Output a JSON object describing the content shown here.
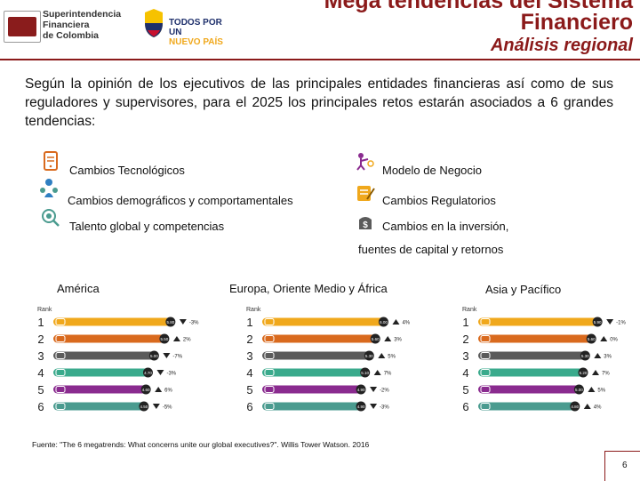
{
  "header": {
    "org_name_lines": [
      "Superintendencia",
      "Financiera",
      "de Colombia"
    ],
    "gov_logo_lines": [
      "TODOS POR UN",
      "NUEVO PAÍS"
    ],
    "title_line1": "Mega tendencias del Sistema",
    "title_line2": "Financiero",
    "subtitle": "Análisis regional"
  },
  "intro": "Según la opinión de los ejecutivos de las principales entidades financieras así como de sus reguladores y supervisores, para el 2025 los principales retos estarán asociados a 6 grandes tendencias:",
  "trends": [
    {
      "label": "Cambios Tecnológicos",
      "icon": "tablet-icon"
    },
    {
      "label": "Modelo de Negocio",
      "icon": "business-model-icon"
    },
    {
      "label": "Cambios demográficos y comportamentales",
      "icon": "demographics-icon"
    },
    {
      "label": "Cambios Regulatorios",
      "icon": "regulatory-icon"
    },
    {
      "label": "Talento global y competencias",
      "icon": "talent-icon"
    },
    {
      "label": "Cambios en la inversión,",
      "icon": "investment-icon"
    }
  ],
  "trend_continuation": "fuentes de capital y retornos",
  "rank_header": "Rank",
  "ranks": [
    "1",
    "2",
    "3",
    "4",
    "5",
    "6"
  ],
  "regions": [
    {
      "title": "América",
      "bars": [
        {
          "value": 5.8,
          "color": "#f0a81c",
          "icon": "business-model-icon",
          "delta": "-3%",
          "dir": "down"
        },
        {
          "value": 5.5,
          "color": "#d96a1e",
          "icon": "tablet-icon",
          "delta": "2%",
          "dir": "up"
        },
        {
          "value": 5.0,
          "color": "#5b5b5b",
          "icon": "investment-icon",
          "delta": "-7%",
          "dir": "down"
        },
        {
          "value": 4.7,
          "color": "#3aaa8c",
          "icon": "regulatory-icon",
          "delta": "-3%",
          "dir": "down"
        },
        {
          "value": 4.6,
          "color": "#8a2b8f",
          "icon": "talent-icon",
          "delta": "6%",
          "dir": "up"
        },
        {
          "value": 4.5,
          "color": "#4a9b8f",
          "icon": "demographics-icon",
          "delta": "-5%",
          "dir": "down"
        }
      ]
    },
    {
      "title": "Europa, Oriente Medio y África",
      "bars": [
        {
          "value": 6.0,
          "color": "#f0a81c",
          "icon": "business-model-icon",
          "delta": "4%",
          "dir": "up"
        },
        {
          "value": 5.6,
          "color": "#d96a1e",
          "icon": "tablet-icon",
          "delta": "3%",
          "dir": "up"
        },
        {
          "value": 5.3,
          "color": "#5b5b5b",
          "icon": "investment-icon",
          "delta": "5%",
          "dir": "up"
        },
        {
          "value": 5.1,
          "color": "#3aaa8c",
          "icon": "regulatory-icon",
          "delta": "7%",
          "dir": "up"
        },
        {
          "value": 4.9,
          "color": "#8a2b8f",
          "icon": "talent-icon",
          "delta": "-2%",
          "dir": "down"
        },
        {
          "value": 4.9,
          "color": "#4a9b8f",
          "icon": "demographics-icon",
          "delta": "-3%",
          "dir": "down"
        }
      ]
    },
    {
      "title": "Asia y Pacífico",
      "bars": [
        {
          "value": 5.9,
          "color": "#f0a81c",
          "icon": "business-model-icon",
          "delta": "-1%",
          "dir": "down"
        },
        {
          "value": 5.6,
          "color": "#d96a1e",
          "icon": "tablet-icon",
          "delta": "0%",
          "dir": "up"
        },
        {
          "value": 5.3,
          "color": "#5b5b5b",
          "icon": "investment-icon",
          "delta": "3%",
          "dir": "up"
        },
        {
          "value": 5.2,
          "color": "#3aaa8c",
          "icon": "regulatory-icon",
          "delta": "7%",
          "dir": "up"
        },
        {
          "value": 5.0,
          "color": "#8a2b8f",
          "icon": "talent-icon",
          "delta": "5%",
          "dir": "up"
        },
        {
          "value": 4.8,
          "color": "#4a9b8f",
          "icon": "demographics-icon",
          "delta": "4%",
          "dir": "up"
        }
      ]
    }
  ],
  "source": "Fuente: \"The 6 megatrends: What concerns unite our global executives?\". Willis Tower Watson. 2016",
  "page_number": "6",
  "colors": {
    "accent": "#8b1a1a",
    "navy": "#1e2f6b"
  }
}
